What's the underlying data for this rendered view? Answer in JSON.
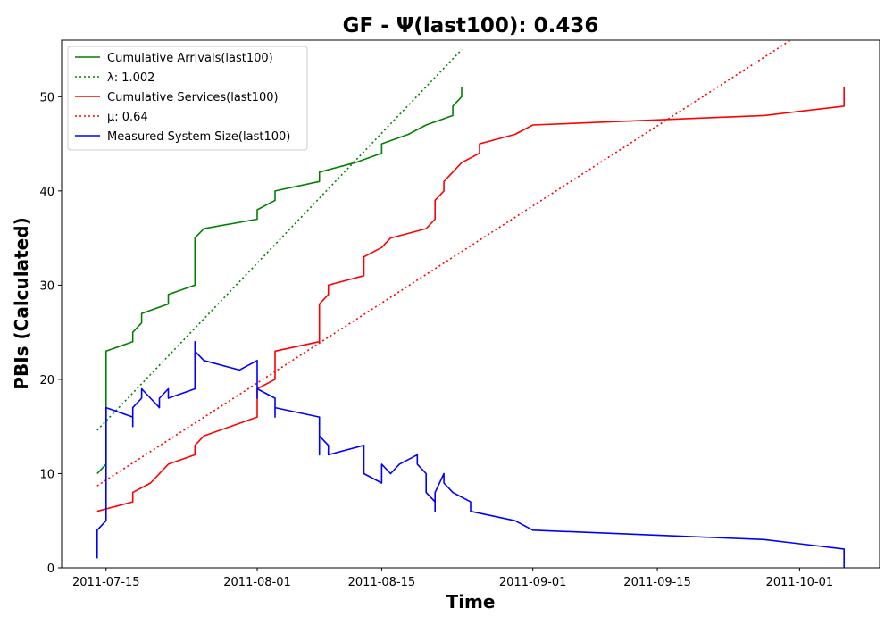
{
  "chart_data": {
    "type": "line",
    "title": "GF -  Ψ(last100): 0.436",
    "xlabel": "Time",
    "ylabel": "PBIs (Calculated)",
    "x_axis_type": "date",
    "xlim": [
      "2011-07-10",
      "2011-10-10"
    ],
    "ylim": [
      0,
      56
    ],
    "x_ticks": [
      "2011-07-15",
      "2011-08-01",
      "2011-08-15",
      "2011-09-01",
      "2011-09-15",
      "2011-10-01"
    ],
    "y_ticks": [
      0,
      10,
      20,
      30,
      40,
      50
    ],
    "grid": false,
    "legend_position": "upper-left",
    "series": [
      {
        "name": "Cumulative Arrivals(last100)",
        "color": "#008000",
        "style": "solid",
        "points": [
          [
            "2011-07-14",
            10
          ],
          [
            "2011-07-15",
            11
          ],
          [
            "2011-07-15",
            23
          ],
          [
            "2011-07-18",
            24
          ],
          [
            "2011-07-18",
            25
          ],
          [
            "2011-07-19",
            26
          ],
          [
            "2011-07-19",
            27
          ],
          [
            "2011-07-22",
            28
          ],
          [
            "2011-07-22",
            29
          ],
          [
            "2011-07-25",
            30
          ],
          [
            "2011-07-25",
            35
          ],
          [
            "2011-07-26",
            36
          ],
          [
            "2011-08-01",
            37
          ],
          [
            "2011-08-01",
            38
          ],
          [
            "2011-08-03",
            39
          ],
          [
            "2011-08-03",
            40
          ],
          [
            "2011-08-08",
            41
          ],
          [
            "2011-08-08",
            42
          ],
          [
            "2011-08-12",
            43
          ],
          [
            "2011-08-15",
            44
          ],
          [
            "2011-08-15",
            45
          ],
          [
            "2011-08-18",
            46
          ],
          [
            "2011-08-20",
            47
          ],
          [
            "2011-08-23",
            48
          ],
          [
            "2011-08-23",
            49
          ],
          [
            "2011-08-24",
            50
          ],
          [
            "2011-08-24",
            51
          ]
        ]
      },
      {
        "name": "λ: 1.002",
        "color": "#008000",
        "style": "dotted",
        "points": [
          [
            "2011-07-14",
            14.6
          ],
          [
            "2011-08-24",
            55
          ]
        ]
      },
      {
        "name": "Cumulative Services(last100)",
        "color": "#ff0000",
        "style": "solid",
        "points": [
          [
            "2011-07-14",
            6
          ],
          [
            "2011-07-18",
            7
          ],
          [
            "2011-07-18",
            8
          ],
          [
            "2011-07-20",
            9
          ],
          [
            "2011-07-22",
            11
          ],
          [
            "2011-07-25",
            12
          ],
          [
            "2011-07-25",
            13
          ],
          [
            "2011-07-26",
            14
          ],
          [
            "2011-08-01",
            16
          ],
          [
            "2011-08-01",
            19
          ],
          [
            "2011-08-03",
            20
          ],
          [
            "2011-08-03",
            23
          ],
          [
            "2011-08-08",
            24
          ],
          [
            "2011-08-08",
            28
          ],
          [
            "2011-08-09",
            29
          ],
          [
            "2011-08-09",
            30
          ],
          [
            "2011-08-13",
            31
          ],
          [
            "2011-08-13",
            33
          ],
          [
            "2011-08-15",
            34
          ],
          [
            "2011-08-16",
            35
          ],
          [
            "2011-08-20",
            36
          ],
          [
            "2011-08-21",
            37
          ],
          [
            "2011-08-21",
            39
          ],
          [
            "2011-08-22",
            40
          ],
          [
            "2011-08-22",
            41
          ],
          [
            "2011-08-24",
            43
          ],
          [
            "2011-08-26",
            44
          ],
          [
            "2011-08-26",
            45
          ],
          [
            "2011-08-30",
            46
          ],
          [
            "2011-09-01",
            47
          ],
          [
            "2011-09-27",
            48
          ],
          [
            "2011-10-06",
            49
          ],
          [
            "2011-10-06",
            51
          ]
        ]
      },
      {
        "name": "μ: 0.64",
        "color": "#ff0000",
        "style": "dotted",
        "points": [
          [
            "2011-07-14",
            8.7
          ],
          [
            "2011-09-30",
            56
          ]
        ]
      },
      {
        "name": "Measured System Size(last100)",
        "color": "#0000ff",
        "style": "solid",
        "points": [
          [
            "2011-07-14",
            1
          ],
          [
            "2011-07-14",
            4
          ],
          [
            "2011-07-15",
            5
          ],
          [
            "2011-07-15",
            17
          ],
          [
            "2011-07-18",
            16
          ],
          [
            "2011-07-18",
            15
          ],
          [
            "2011-07-18",
            17
          ],
          [
            "2011-07-19",
            18
          ],
          [
            "2011-07-19",
            19
          ],
          [
            "2011-07-21",
            17
          ],
          [
            "2011-07-21",
            18
          ],
          [
            "2011-07-22",
            19
          ],
          [
            "2011-07-22",
            18
          ],
          [
            "2011-07-25",
            19
          ],
          [
            "2011-07-25",
            24
          ],
          [
            "2011-07-25",
            22
          ],
          [
            "2011-07-25",
            23
          ],
          [
            "2011-07-26",
            22
          ],
          [
            "2011-07-30",
            21
          ],
          [
            "2011-08-01",
            22
          ],
          [
            "2011-08-01",
            18
          ],
          [
            "2011-08-01",
            19
          ],
          [
            "2011-08-03",
            18
          ],
          [
            "2011-08-03",
            16
          ],
          [
            "2011-08-03",
            17
          ],
          [
            "2011-08-08",
            16
          ],
          [
            "2011-08-08",
            12
          ],
          [
            "2011-08-08",
            14
          ],
          [
            "2011-08-09",
            13
          ],
          [
            "2011-08-09",
            12
          ],
          [
            "2011-08-13",
            13
          ],
          [
            "2011-08-13",
            10
          ],
          [
            "2011-08-15",
            9
          ],
          [
            "2011-08-15",
            11
          ],
          [
            "2011-08-16",
            10
          ],
          [
            "2011-08-17",
            11
          ],
          [
            "2011-08-19",
            12
          ],
          [
            "2011-08-19",
            11
          ],
          [
            "2011-08-20",
            10
          ],
          [
            "2011-08-20",
            8
          ],
          [
            "2011-08-21",
            7
          ],
          [
            "2011-08-21",
            6
          ],
          [
            "2011-08-21",
            8
          ],
          [
            "2011-08-22",
            10
          ],
          [
            "2011-08-22",
            9
          ],
          [
            "2011-08-23",
            8
          ],
          [
            "2011-08-25",
            7
          ],
          [
            "2011-08-25",
            6
          ],
          [
            "2011-08-30",
            5
          ],
          [
            "2011-09-01",
            4
          ],
          [
            "2011-09-27",
            3
          ],
          [
            "2011-10-06",
            2
          ],
          [
            "2011-10-06",
            0
          ]
        ]
      }
    ]
  }
}
